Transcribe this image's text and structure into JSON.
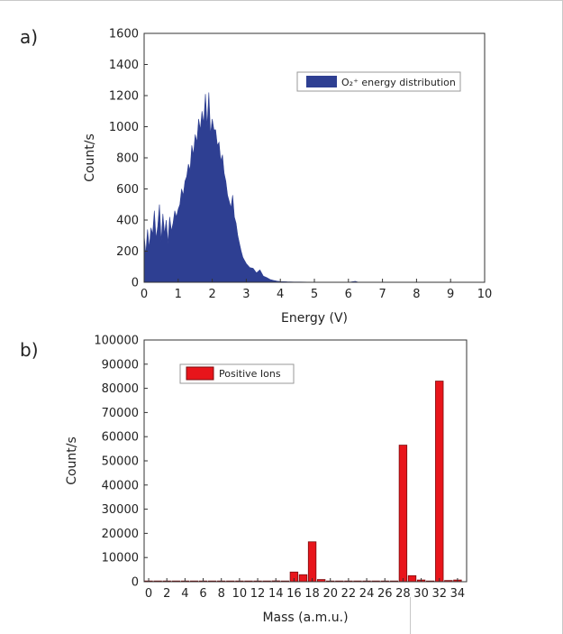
{
  "colors": {
    "panel_a": "#2e3f92",
    "panel_b": "#e8151b",
    "bar_edge": "#7a0e10",
    "axis": "#333333"
  },
  "chart_data": [
    {
      "type": "area",
      "panel_label": "a)",
      "xlabel": "Energy (V)",
      "ylabel": "Count/s",
      "xlim": [
        0,
        10
      ],
      "ylim": [
        0,
        1600
      ],
      "x_ticks": [
        0,
        1,
        2,
        3,
        4,
        5,
        6,
        7,
        8,
        9,
        10
      ],
      "y_ticks": [
        0,
        200,
        400,
        600,
        800,
        1000,
        1200,
        1400,
        1600
      ],
      "grid": false,
      "legend_position": "top-right",
      "series": [
        {
          "name": "O₂⁺ energy distribution",
          "x": [
            0,
            0.05,
            0.1,
            0.15,
            0.2,
            0.25,
            0.3,
            0.35,
            0.4,
            0.45,
            0.5,
            0.55,
            0.6,
            0.65,
            0.7,
            0.75,
            0.8,
            0.85,
            0.9,
            0.95,
            1.0,
            1.05,
            1.1,
            1.15,
            1.2,
            1.25,
            1.3,
            1.35,
            1.4,
            1.45,
            1.5,
            1.55,
            1.6,
            1.65,
            1.7,
            1.75,
            1.8,
            1.85,
            1.9,
            1.95,
            2.0,
            2.05,
            2.1,
            2.15,
            2.2,
            2.25,
            2.3,
            2.35,
            2.4,
            2.45,
            2.5,
            2.55,
            2.6,
            2.65,
            2.7,
            2.75,
            2.8,
            2.85,
            2.9,
            2.95,
            3.0,
            3.1,
            3.2,
            3.3,
            3.4,
            3.5,
            3.6,
            3.7,
            3.8,
            3.9,
            4.0,
            4.2,
            4.4,
            4.6,
            4.8,
            5.0,
            5.5,
            6.0,
            6.2,
            6.3,
            6.5,
            7.0,
            7.5,
            8.0,
            8.5,
            9.0,
            9.5,
            10.0
          ],
          "values": [
            300,
            180,
            340,
            220,
            350,
            310,
            460,
            280,
            360,
            500,
            260,
            440,
            310,
            400,
            250,
            420,
            330,
            380,
            460,
            420,
            470,
            500,
            600,
            560,
            650,
            680,
            760,
            720,
            880,
            820,
            950,
            900,
            1050,
            980,
            1100,
            1020,
            1210,
            1000,
            1220,
            950,
            1050,
            980,
            980,
            880,
            900,
            780,
            820,
            700,
            650,
            560,
            520,
            480,
            560,
            420,
            380,
            300,
            250,
            200,
            160,
            140,
            120,
            95,
            90,
            60,
            80,
            40,
            30,
            18,
            12,
            8,
            5,
            3,
            2,
            2,
            1,
            0,
            0,
            0,
            6,
            0,
            0,
            0,
            0,
            0,
            0,
            0,
            0,
            0
          ]
        }
      ]
    },
    {
      "type": "bar",
      "panel_label": "b)",
      "xlabel": "Mass (a.m.u.)",
      "ylabel": "Count/s",
      "xlim": [
        -0.5,
        35
      ],
      "ylim": [
        0,
        100000
      ],
      "x_ticks": [
        0,
        2,
        4,
        6,
        8,
        10,
        12,
        14,
        16,
        18,
        20,
        22,
        24,
        26,
        28,
        30,
        32,
        34
      ],
      "y_ticks": [
        0,
        10000,
        20000,
        30000,
        40000,
        50000,
        60000,
        70000,
        80000,
        90000,
        100000
      ],
      "grid": false,
      "legend_position": "top-left",
      "series": [
        {
          "name": "Positive Ions",
          "x": [
            0,
            1,
            2,
            3,
            4,
            5,
            6,
            7,
            8,
            9,
            10,
            11,
            12,
            13,
            14,
            15,
            16,
            17,
            18,
            19,
            20,
            21,
            22,
            23,
            24,
            25,
            26,
            27,
            28,
            29,
            30,
            31,
            32,
            33,
            34
          ],
          "values": [
            50,
            50,
            50,
            50,
            50,
            50,
            50,
            50,
            50,
            50,
            50,
            50,
            80,
            60,
            350,
            60,
            4000,
            2900,
            16500,
            900,
            200,
            50,
            50,
            50,
            50,
            50,
            50,
            100,
            56500,
            2500,
            700,
            200,
            83000,
            500,
            700
          ]
        }
      ]
    }
  ]
}
